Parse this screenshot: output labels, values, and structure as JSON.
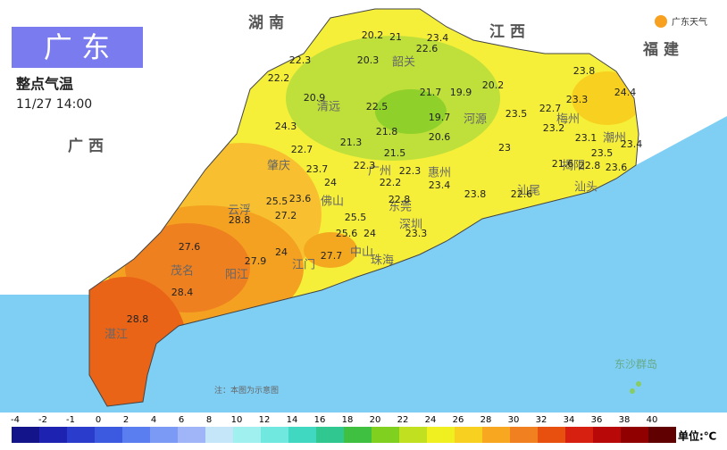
{
  "header": {
    "title": "广 东",
    "subtitle": "整点气温",
    "time": "11/27 14:00",
    "logo": "广东天气"
  },
  "neighbors": [
    "湖 南",
    "江 西",
    "福 建",
    "广 西"
  ],
  "cities": [
    "韶关",
    "清远",
    "河源",
    "梅州",
    "潮州",
    "揭阳",
    "汕头",
    "肇庆",
    "惠州",
    "广州",
    "佛山",
    "东莞",
    "深圳",
    "云浮",
    "茂名",
    "阳江",
    "江门",
    "湛江",
    "汕尾",
    "中山",
    "珠海"
  ],
  "stations": [
    20.2,
    21,
    23.4,
    22.6,
    20.3,
    22.3,
    22.2,
    21.7,
    19.9,
    20.2,
    23.8,
    24.4,
    20.9,
    22.5,
    23.3,
    22.7,
    24.3,
    19.7,
    23.5,
    21.8,
    20.6,
    23.2,
    23.1,
    21.3,
    22.7,
    23,
    23.5,
    23.4,
    21.5,
    22.3,
    23.7,
    22.3,
    21.6,
    22.8,
    23.6,
    22.2,
    23.4,
    23.8,
    22.6,
    25.5,
    23.6,
    24,
    22.8,
    28.8,
    27.2,
    25.5,
    23.3,
    25.6,
    24,
    27.6,
    27.9,
    24,
    27.7,
    28.4,
    28.8
  ],
  "note": "注：本图为示意图",
  "islands": "东沙群岛",
  "legend": {
    "ticks": [
      -4,
      -2,
      -1,
      0,
      2,
      4,
      6,
      8,
      10,
      12,
      14,
      16,
      18,
      20,
      22,
      24,
      26,
      28,
      30,
      32,
      34,
      36,
      38,
      40
    ],
    "colors": [
      "#14148a",
      "#1e22b0",
      "#2a3ccc",
      "#3c5ae0",
      "#5a7ef0",
      "#7b9af5",
      "#a0b4f8",
      "#c4e6f8",
      "#a0f0f0",
      "#70e8e0",
      "#40d8c0",
      "#30c890",
      "#40c040",
      "#80d020",
      "#c0e020",
      "#f0f020",
      "#f8d020",
      "#f8a820",
      "#f08020",
      "#e85010",
      "#d82010",
      "#b80808",
      "#900000",
      "#600000"
    ],
    "unit": "单位:℃"
  }
}
